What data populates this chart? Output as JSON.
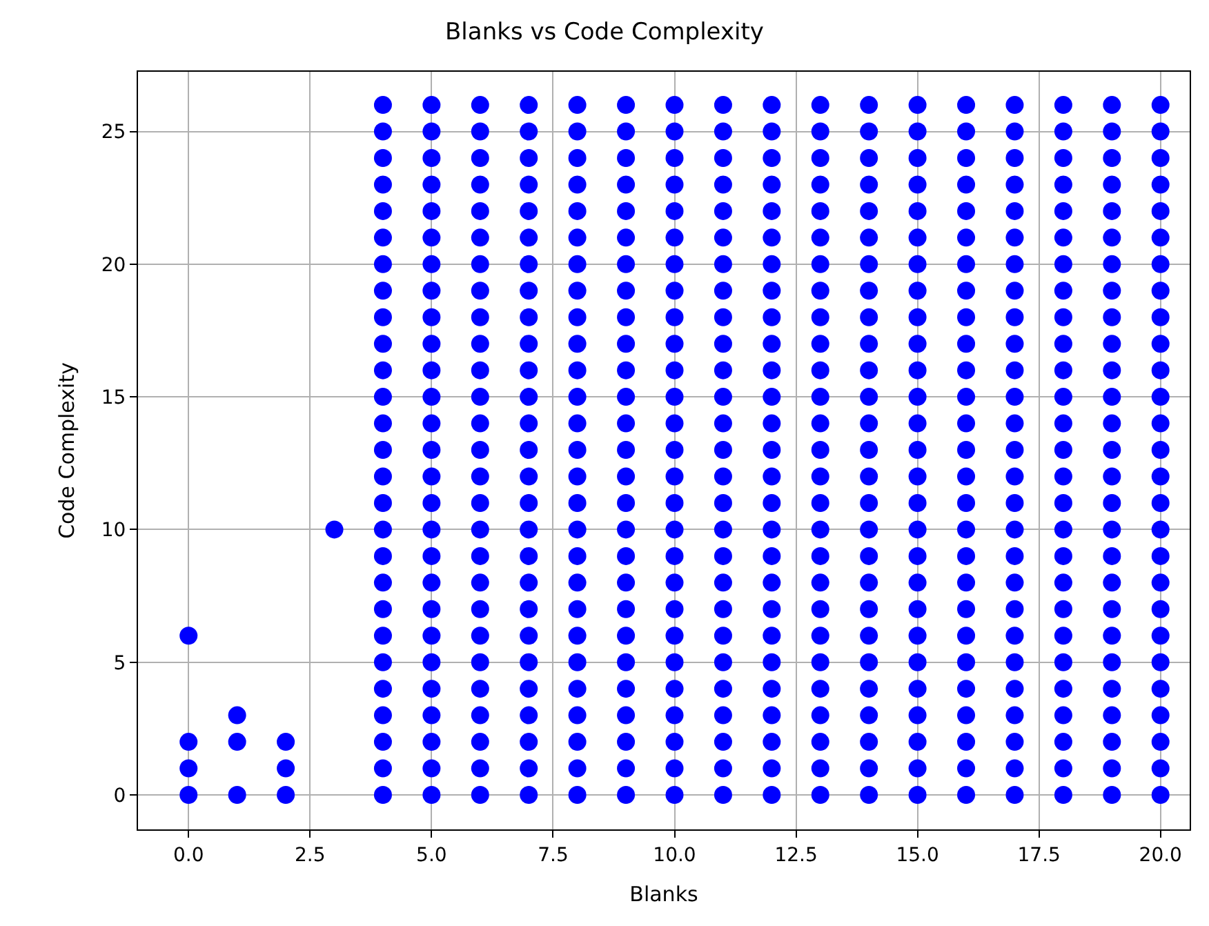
{
  "chart_data": {
    "type": "scatter",
    "title": "Blanks vs Code Complexity",
    "xlabel": "Blanks",
    "ylabel": "Code Complexity",
    "xlim": [
      -1.04,
      20.6
    ],
    "ylim": [
      -1.3,
      27.25
    ],
    "xticks": [
      {
        "value": 0,
        "label": "0.0"
      },
      {
        "value": 2.5,
        "label": "2.5"
      },
      {
        "value": 5,
        "label": "5.0"
      },
      {
        "value": 7.5,
        "label": "7.5"
      },
      {
        "value": 10,
        "label": "10.0"
      },
      {
        "value": 12.5,
        "label": "12.5"
      },
      {
        "value": 15,
        "label": "15.0"
      },
      {
        "value": 17.5,
        "label": "17.5"
      },
      {
        "value": 20,
        "label": "20.0"
      }
    ],
    "yticks": [
      0,
      5,
      10,
      15,
      20,
      25
    ],
    "grid": true,
    "marker": "circle",
    "series": [
      {
        "color": "#0000ff",
        "x": [
          0,
          0,
          0,
          0,
          1,
          1,
          1,
          2,
          2,
          2,
          3
        ],
        "values": [
          0,
          1,
          2,
          6,
          0,
          2,
          3,
          0,
          1,
          2,
          10
        ]
      },
      {
        "color": "#0000ff",
        "x": [
          4,
          4,
          4,
          4,
          4,
          4,
          4,
          4,
          4,
          4,
          4,
          4,
          4,
          4,
          4,
          4,
          4,
          4,
          4,
          4,
          4,
          4,
          4,
          4,
          4,
          4,
          4
        ],
        "values": [
          0,
          1,
          2,
          3,
          4,
          5,
          6,
          7,
          8,
          9,
          10,
          11,
          12,
          13,
          14,
          15,
          16,
          17,
          18,
          19,
          20,
          21,
          22,
          23,
          24,
          25,
          26
        ]
      },
      {
        "color": "#0000ff",
        "x": [
          5,
          5,
          5,
          5,
          5,
          5,
          5,
          5,
          5,
          5,
          5,
          5,
          5,
          5,
          5,
          5,
          5,
          5,
          5,
          5,
          5,
          5,
          5,
          5,
          5,
          5,
          5
        ],
        "values": [
          0,
          1,
          2,
          3,
          4,
          5,
          6,
          7,
          8,
          9,
          10,
          11,
          12,
          13,
          14,
          15,
          16,
          17,
          18,
          19,
          20,
          21,
          22,
          23,
          24,
          25,
          26
        ]
      },
      {
        "color": "#0000ff",
        "x": [
          6,
          6,
          6,
          6,
          6,
          6,
          6,
          6,
          6,
          6,
          6,
          6,
          6,
          6,
          6,
          6,
          6,
          6,
          6,
          6,
          6,
          6,
          6,
          6,
          6,
          6,
          6
        ],
        "values": [
          0,
          1,
          2,
          3,
          4,
          5,
          6,
          7,
          8,
          9,
          10,
          11,
          12,
          13,
          14,
          15,
          16,
          17,
          18,
          19,
          20,
          21,
          22,
          23,
          24,
          25,
          26
        ]
      },
      {
        "color": "#0000ff",
        "x": [
          7,
          7,
          7,
          7,
          7,
          7,
          7,
          7,
          7,
          7,
          7,
          7,
          7,
          7,
          7,
          7,
          7,
          7,
          7,
          7,
          7,
          7,
          7,
          7,
          7,
          7,
          7
        ],
        "values": [
          0,
          1,
          2,
          3,
          4,
          5,
          6,
          7,
          8,
          9,
          10,
          11,
          12,
          13,
          14,
          15,
          16,
          17,
          18,
          19,
          20,
          21,
          22,
          23,
          24,
          25,
          26
        ]
      },
      {
        "color": "#0000ff",
        "x": [
          8,
          8,
          8,
          8,
          8,
          8,
          8,
          8,
          8,
          8,
          8,
          8,
          8,
          8,
          8,
          8,
          8,
          8,
          8,
          8,
          8,
          8,
          8,
          8,
          8,
          8,
          8
        ],
        "values": [
          0,
          1,
          2,
          3,
          4,
          5,
          6,
          7,
          8,
          9,
          10,
          11,
          12,
          13,
          14,
          15,
          16,
          17,
          18,
          19,
          20,
          21,
          22,
          23,
          24,
          25,
          26
        ]
      },
      {
        "color": "#0000ff",
        "x": [
          9,
          9,
          9,
          9,
          9,
          9,
          9,
          9,
          9,
          9,
          9,
          9,
          9,
          9,
          9,
          9,
          9,
          9,
          9,
          9,
          9,
          9,
          9,
          9,
          9,
          9,
          9
        ],
        "values": [
          0,
          1,
          2,
          3,
          4,
          5,
          6,
          7,
          8,
          9,
          10,
          11,
          12,
          13,
          14,
          15,
          16,
          17,
          18,
          19,
          20,
          21,
          22,
          23,
          24,
          25,
          26
        ]
      },
      {
        "color": "#0000ff",
        "x": [
          10,
          10,
          10,
          10,
          10,
          10,
          10,
          10,
          10,
          10,
          10,
          10,
          10,
          10,
          10,
          10,
          10,
          10,
          10,
          10,
          10,
          10,
          10,
          10,
          10,
          10,
          10
        ],
        "values": [
          0,
          1,
          2,
          3,
          4,
          5,
          6,
          7,
          8,
          9,
          10,
          11,
          12,
          13,
          14,
          15,
          16,
          17,
          18,
          19,
          20,
          21,
          22,
          23,
          24,
          25,
          26
        ]
      },
      {
        "color": "#0000ff",
        "x": [
          11,
          11,
          11,
          11,
          11,
          11,
          11,
          11,
          11,
          11,
          11,
          11,
          11,
          11,
          11,
          11,
          11,
          11,
          11,
          11,
          11,
          11,
          11,
          11,
          11,
          11,
          11
        ],
        "values": [
          0,
          1,
          2,
          3,
          4,
          5,
          6,
          7,
          8,
          9,
          10,
          11,
          12,
          13,
          14,
          15,
          16,
          17,
          18,
          19,
          20,
          21,
          22,
          23,
          24,
          25,
          26
        ]
      },
      {
        "color": "#0000ff",
        "x": [
          12,
          12,
          12,
          12,
          12,
          12,
          12,
          12,
          12,
          12,
          12,
          12,
          12,
          12,
          12,
          12,
          12,
          12,
          12,
          12,
          12,
          12,
          12,
          12,
          12,
          12,
          12
        ],
        "values": [
          0,
          1,
          2,
          3,
          4,
          5,
          6,
          7,
          8,
          9,
          10,
          11,
          12,
          13,
          14,
          15,
          16,
          17,
          18,
          19,
          20,
          21,
          22,
          23,
          24,
          25,
          26
        ]
      },
      {
        "color": "#0000ff",
        "x": [
          13,
          13,
          13,
          13,
          13,
          13,
          13,
          13,
          13,
          13,
          13,
          13,
          13,
          13,
          13,
          13,
          13,
          13,
          13,
          13,
          13,
          13,
          13,
          13,
          13,
          13,
          13
        ],
        "values": [
          0,
          1,
          2,
          3,
          4,
          5,
          6,
          7,
          8,
          9,
          10,
          11,
          12,
          13,
          14,
          15,
          16,
          17,
          18,
          19,
          20,
          21,
          22,
          23,
          24,
          25,
          26
        ]
      },
      {
        "color": "#0000ff",
        "x": [
          14,
          14,
          14,
          14,
          14,
          14,
          14,
          14,
          14,
          14,
          14,
          14,
          14,
          14,
          14,
          14,
          14,
          14,
          14,
          14,
          14,
          14,
          14,
          14,
          14,
          14,
          14
        ],
        "values": [
          0,
          1,
          2,
          3,
          4,
          5,
          6,
          7,
          8,
          9,
          10,
          11,
          12,
          13,
          14,
          15,
          16,
          17,
          18,
          19,
          20,
          21,
          22,
          23,
          24,
          25,
          26
        ]
      },
      {
        "color": "#0000ff",
        "x": [
          15,
          15,
          15,
          15,
          15,
          15,
          15,
          15,
          15,
          15,
          15,
          15,
          15,
          15,
          15,
          15,
          15,
          15,
          15,
          15,
          15,
          15,
          15,
          15,
          15,
          15,
          15
        ],
        "values": [
          0,
          1,
          2,
          3,
          4,
          5,
          6,
          7,
          8,
          9,
          10,
          11,
          12,
          13,
          14,
          15,
          16,
          17,
          18,
          19,
          20,
          21,
          22,
          23,
          24,
          25,
          26
        ]
      },
      {
        "color": "#0000ff",
        "x": [
          16,
          16,
          16,
          16,
          16,
          16,
          16,
          16,
          16,
          16,
          16,
          16,
          16,
          16,
          16,
          16,
          16,
          16,
          16,
          16,
          16,
          16,
          16,
          16,
          16,
          16,
          16
        ],
        "values": [
          0,
          1,
          2,
          3,
          4,
          5,
          6,
          7,
          8,
          9,
          10,
          11,
          12,
          13,
          14,
          15,
          16,
          17,
          18,
          19,
          20,
          21,
          22,
          23,
          24,
          25,
          26
        ]
      },
      {
        "color": "#0000ff",
        "x": [
          17,
          17,
          17,
          17,
          17,
          17,
          17,
          17,
          17,
          17,
          17,
          17,
          17,
          17,
          17,
          17,
          17,
          17,
          17,
          17,
          17,
          17,
          17,
          17,
          17,
          17,
          17
        ],
        "values": [
          0,
          1,
          2,
          3,
          4,
          5,
          6,
          7,
          8,
          9,
          10,
          11,
          12,
          13,
          14,
          15,
          16,
          17,
          18,
          19,
          20,
          21,
          22,
          23,
          24,
          25,
          26
        ]
      },
      {
        "color": "#0000ff",
        "x": [
          18,
          18,
          18,
          18,
          18,
          18,
          18,
          18,
          18,
          18,
          18,
          18,
          18,
          18,
          18,
          18,
          18,
          18,
          18,
          18,
          18,
          18,
          18,
          18,
          18,
          18,
          18
        ],
        "values": [
          0,
          1,
          2,
          3,
          4,
          5,
          6,
          7,
          8,
          9,
          10,
          11,
          12,
          13,
          14,
          15,
          16,
          17,
          18,
          19,
          20,
          21,
          22,
          23,
          24,
          25,
          26
        ]
      },
      {
        "color": "#0000ff",
        "x": [
          19,
          19,
          19,
          19,
          19,
          19,
          19,
          19,
          19,
          19,
          19,
          19,
          19,
          19,
          19,
          19,
          19,
          19,
          19,
          19,
          19,
          19,
          19,
          19,
          19,
          19,
          19
        ],
        "values": [
          0,
          1,
          2,
          3,
          4,
          5,
          6,
          7,
          8,
          9,
          10,
          11,
          12,
          13,
          14,
          15,
          16,
          17,
          18,
          19,
          20,
          21,
          22,
          23,
          24,
          25,
          26
        ]
      },
      {
        "color": "#0000ff",
        "x": [
          20,
          20,
          20,
          20,
          20,
          20,
          20,
          20,
          20,
          20,
          20,
          20,
          20,
          20,
          20,
          20,
          20,
          20,
          20,
          20,
          20,
          20,
          20,
          20,
          20,
          20,
          20
        ],
        "values": [
          0,
          1,
          2,
          3,
          4,
          5,
          6,
          7,
          8,
          9,
          10,
          11,
          12,
          13,
          14,
          15,
          16,
          17,
          18,
          19,
          20,
          21,
          22,
          23,
          24,
          25,
          26
        ]
      }
    ]
  }
}
